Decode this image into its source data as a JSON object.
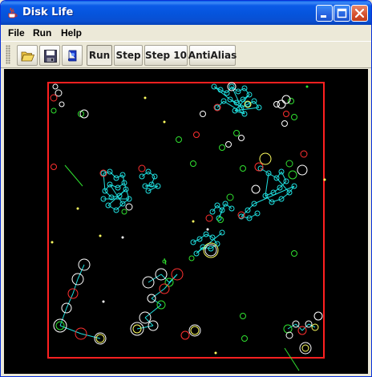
{
  "window": {
    "title": "Disk Life"
  },
  "menu": {
    "items": [
      {
        "label": "File"
      },
      {
        "label": "Run"
      },
      {
        "label": "Help"
      }
    ]
  },
  "toolbar": {
    "icons": [
      {
        "name": "open-icon"
      },
      {
        "name": "save-icon"
      },
      {
        "name": "book-icon"
      }
    ],
    "buttons": [
      {
        "label": "Run",
        "pressed": true
      },
      {
        "label": "Step",
        "pressed": false
      },
      {
        "label": "Step 10",
        "pressed": false
      },
      {
        "label": "AntiAlias",
        "pressed": false
      }
    ]
  },
  "simulation": {
    "background_color": "#000000",
    "boundary_color": "#FF2020",
    "link_color": "#20E0E0",
    "disk_colors": [
      "#FFFFFF",
      "#FF3030",
      "#30E030",
      "#FFFF60",
      "#20E0E0"
    ]
  }
}
